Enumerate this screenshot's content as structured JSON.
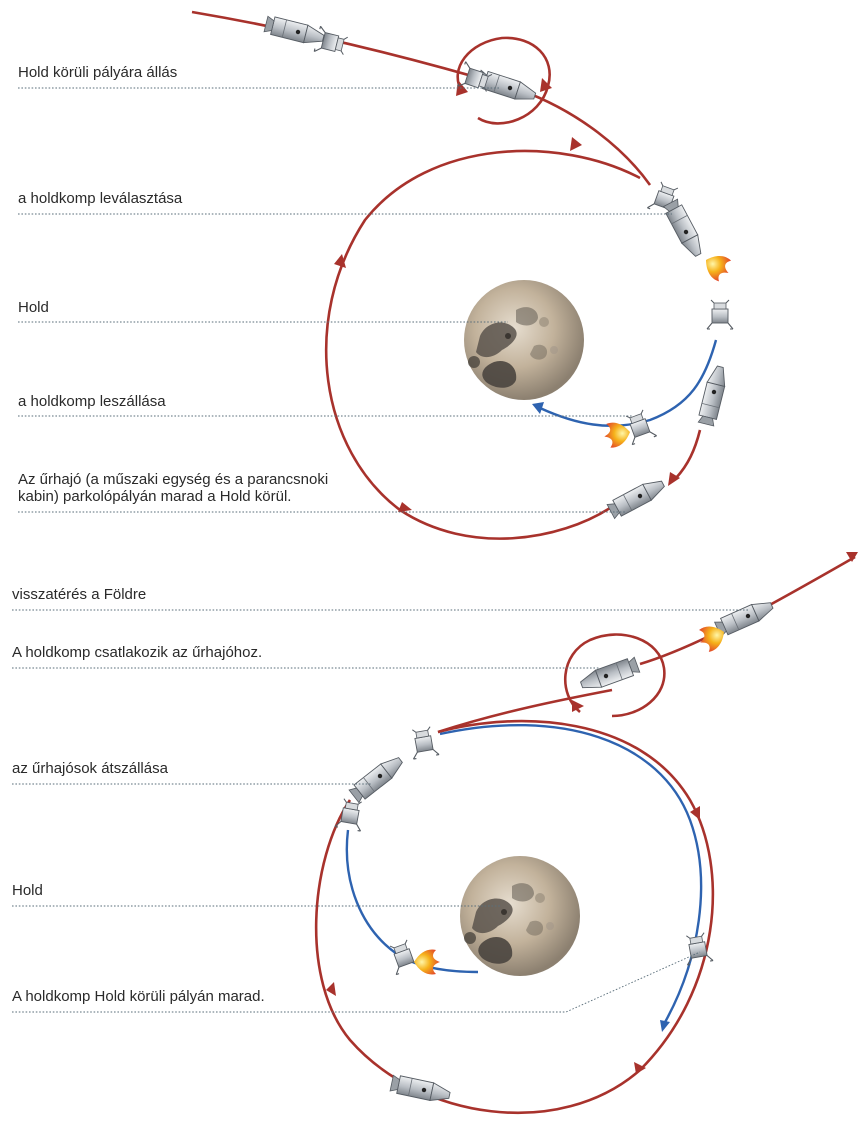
{
  "top": {
    "labels": {
      "lunar_orbit_insertion": "Hold körüli pályára állás",
      "lm_separation": "a holdkomp leválasztása",
      "moon": "Hold",
      "lm_landing": "a holdkomp leszállása",
      "csm_parking_line1": "Az űrhajó (a műszaki egység és a parancsnoki",
      "csm_parking_line2": "kabin) parkolópályán marad a Hold körül."
    }
  },
  "bottom": {
    "labels": {
      "return_to_earth": "visszatérés a Földre",
      "lm_docking": "A holdkomp csatlakozik az űrhajóhoz.",
      "crew_transfer": "az űrhajósok átszállása",
      "moon": "Hold",
      "lm_remains": "A holdkomp Hold körüli pályán marad."
    }
  },
  "colors": {
    "trajectory_red": "#a8322c",
    "trajectory_blue": "#2e63b0",
    "leader_line": "#5a6e7a",
    "moon_light": "#cbbba4",
    "moon_dark": "#4f4b45",
    "engine_flame": "#f6a21a",
    "spacecraft": "#c9cdd2"
  },
  "icons": [
    "spacecraft-icon",
    "lunar-module-icon",
    "moon-icon",
    "engine-flame-icon"
  ]
}
